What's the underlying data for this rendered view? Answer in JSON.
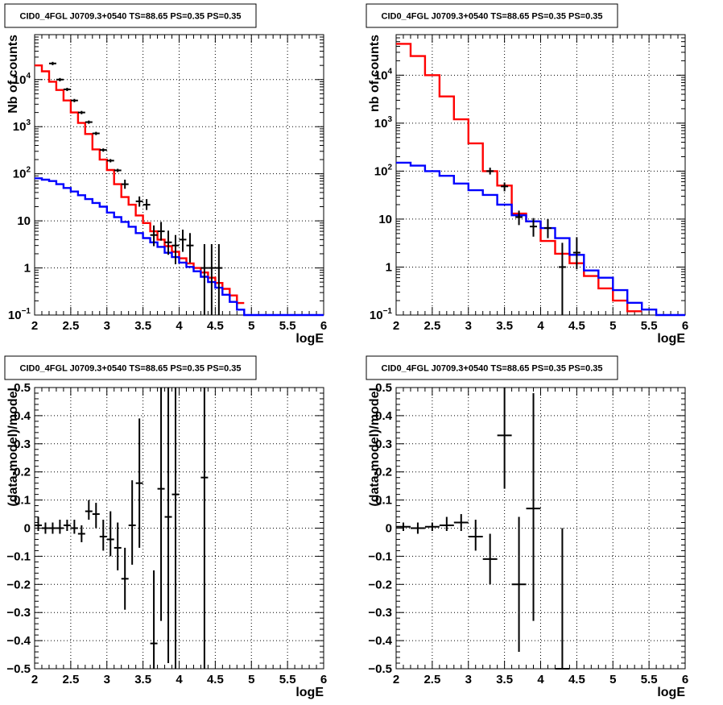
{
  "chart_data": [
    {
      "type": "line",
      "title": "CID0_4FGL J0709.3+0540 TS=88.65 PS=0.35 PS=0.35",
      "xlabel": "logE",
      "ylabel": "Nb of counts",
      "yscale": "log",
      "xlim": [
        2,
        6
      ],
      "ylim": [
        0.1,
        90000
      ],
      "grid": true,
      "x_ticks": [
        "2",
        "2.5",
        "3",
        "3.5",
        "4",
        "4.5",
        "5",
        "5.5",
        "6"
      ],
      "y_ticks": [
        {
          "value": 0.1,
          "base": "10",
          "exp": "−1"
        },
        {
          "value": 1,
          "label": "1"
        },
        {
          "value": 10,
          "label": "10"
        },
        {
          "value": 100,
          "base": "10",
          "exp": "2"
        },
        {
          "value": 1000,
          "base": "10",
          "exp": "3"
        },
        {
          "value": 10000,
          "base": "10",
          "exp": "4"
        }
      ],
      "bin_edges": [
        2.0,
        2.1,
        2.2,
        2.3,
        2.4,
        2.5,
        2.6,
        2.7,
        2.8,
        2.9,
        3.0,
        3.1,
        3.2,
        3.3,
        3.4,
        3.5,
        3.6,
        3.7,
        3.8,
        3.9,
        4.0,
        4.1,
        4.2,
        4.3,
        4.4,
        4.5,
        4.6,
        4.7,
        4.8,
        4.9,
        5.0,
        5.1,
        5.2,
        5.3,
        5.4,
        5.5,
        5.6,
        5.7,
        5.8,
        5.9,
        6.0
      ],
      "series": [
        {
          "color": "#ff0000",
          "kind": "step",
          "values": [
            20000,
            15000,
            9000,
            6000,
            3600,
            2000,
            1200,
            700,
            330,
            200,
            120,
            60,
            32,
            22,
            13,
            9,
            6,
            4,
            2.9,
            2.2,
            1.6,
            1.25,
            1.0,
            0.8,
            0.62,
            0.48,
            0.36,
            0.26,
            0.18
          ]
        },
        {
          "color": "#0000ff",
          "kind": "step",
          "values": [
            80,
            75,
            70,
            60,
            50,
            42,
            35,
            29,
            24,
            20,
            15,
            12,
            9.5,
            7.5,
            5.5,
            4.3,
            3.5,
            2.8,
            2.1,
            1.7,
            1.3,
            1.05,
            0.85,
            0.65,
            0.5,
            0.38,
            0.27,
            0.19,
            0.13,
            0.1,
            0.1,
            0.1,
            0.1,
            0.1,
            0.1,
            0.1,
            0.1,
            0.1,
            0.1,
            0.1
          ]
        }
      ],
      "data_points": [
        {
          "x": 2.25,
          "y": 22000
        },
        {
          "x": 2.35,
          "y": 10000
        },
        {
          "x": 2.45,
          "y": 6200
        },
        {
          "x": 2.55,
          "y": 3600
        },
        {
          "x": 2.65,
          "y": 2000
        },
        {
          "x": 2.75,
          "y": 1250
        },
        {
          "x": 2.85,
          "y": 720
        },
        {
          "x": 2.95,
          "y": 320
        },
        {
          "x": 3.05,
          "y": 190
        },
        {
          "x": 3.15,
          "y": 118
        },
        {
          "x": 3.25,
          "y": 60,
          "lo": 48,
          "hi": 75
        },
        {
          "x": 3.45,
          "y": 26,
          "lo": 20,
          "hi": 33
        },
        {
          "x": 3.55,
          "y": 22,
          "lo": 17,
          "hi": 29
        },
        {
          "x": 3.65,
          "y": 5,
          "lo": 2.9,
          "hi": 8
        },
        {
          "x": 3.75,
          "y": 6,
          "lo": 3.8,
          "hi": 9.5
        },
        {
          "x": 3.85,
          "y": 3.5,
          "lo": 1.9,
          "hi": 6.2
        },
        {
          "x": 3.95,
          "y": 3,
          "lo": 1.2,
          "hi": 5
        },
        {
          "x": 4.05,
          "y": 4,
          "lo": 2.2,
          "hi": 6.5
        },
        {
          "x": 4.15,
          "y": 3,
          "lo": 1.3,
          "hi": 5.5
        },
        {
          "x": 4.35,
          "y": 1,
          "lo": 0.1,
          "hi": 3.2
        },
        {
          "x": 4.45,
          "y": 1,
          "lo": 0.1,
          "hi": 3.2
        },
        {
          "x": 4.55,
          "y": 1,
          "lo": 0.1,
          "hi": 3.2
        }
      ]
    },
    {
      "type": "line",
      "title": "CID0_4FGL J0709.3+0540 TS=88.65 PS=0.35 PS=0.35",
      "xlabel": "logE",
      "ylabel": "nb of counts",
      "yscale": "log",
      "xlim": [
        2,
        6
      ],
      "ylim": [
        0.1,
        70000
      ],
      "grid": true,
      "x_ticks": [
        "2",
        "2.5",
        "3",
        "3.5",
        "4",
        "4.5",
        "5",
        "5.5",
        "6"
      ],
      "y_ticks": [
        {
          "value": 0.1,
          "base": "10",
          "exp": "−1"
        },
        {
          "value": 1,
          "label": "1"
        },
        {
          "value": 10,
          "label": "10"
        },
        {
          "value": 100,
          "base": "10",
          "exp": "2"
        },
        {
          "value": 1000,
          "base": "10",
          "exp": "3"
        },
        {
          "value": 10000,
          "base": "10",
          "exp": "4"
        }
      ],
      "bin_edges": [
        2.0,
        2.2,
        2.4,
        2.6,
        2.8,
        3.0,
        3.2,
        3.4,
        3.6,
        3.8,
        4.0,
        4.2,
        4.4,
        4.6,
        4.8,
        5.0,
        5.2,
        5.4,
        5.6,
        5.8,
        6.0
      ],
      "series": [
        {
          "color": "#ff0000",
          "kind": "step",
          "values": [
            45000,
            25000,
            10000,
            3600,
            1200,
            380,
            100,
            50,
            13,
            9,
            3.5,
            1.9,
            1.2,
            0.65,
            0.36,
            0.2,
            0.12
          ]
        },
        {
          "color": "#0000ff",
          "kind": "step",
          "values": [
            150,
            130,
            100,
            80,
            55,
            40,
            32,
            20,
            12,
            9,
            6.5,
            4,
            1.8,
            0.85,
            0.6,
            0.33,
            0.18,
            0.13,
            0.1,
            0.1
          ]
        }
      ],
      "data_points": [
        {
          "x": 3.3,
          "y": 100,
          "lo": 85,
          "hi": 118
        },
        {
          "x": 3.5,
          "y": 48,
          "lo": 38,
          "hi": 58
        },
        {
          "x": 3.7,
          "y": 11,
          "lo": 7.5,
          "hi": 15
        },
        {
          "x": 3.9,
          "y": 7,
          "lo": 4.3,
          "hi": 10.5
        },
        {
          "x": 4.1,
          "y": 6.5,
          "lo": 4,
          "hi": 10
        },
        {
          "x": 4.3,
          "y": 1,
          "lo": 0.1,
          "hi": 3.2
        },
        {
          "x": 4.5,
          "y": 2,
          "lo": 0.9,
          "hi": 4.2
        }
      ]
    },
    {
      "type": "scatter",
      "title": "CID0_4FGL J0709.3+0540 TS=88.65 PS=0.35 PS=0.35",
      "xlabel": "logE",
      "ylabel": "(data-model)/model",
      "xlim": [
        2,
        6
      ],
      "ylim": [
        -0.5,
        0.5
      ],
      "grid": true,
      "x_ticks": [
        "2",
        "2.5",
        "3",
        "3.5",
        "4",
        "4.5",
        "5",
        "5.5",
        "6"
      ],
      "y_ticks": [
        "−0.5",
        "−0.4",
        "−0.3",
        "−0.2",
        "−0.1",
        "0",
        "0.1",
        "0.2",
        "0.3",
        "0.4",
        "0.5"
      ],
      "bin_width": 0.1,
      "data_points": [
        {
          "x": 2.05,
          "y": 0.01,
          "lo": -0.01,
          "hi": 0.04
        },
        {
          "x": 2.15,
          "y": 0.0,
          "lo": -0.02,
          "hi": 0.02
        },
        {
          "x": 2.25,
          "y": 0.0,
          "lo": -0.02,
          "hi": 0.02
        },
        {
          "x": 2.35,
          "y": 0.0,
          "lo": -0.02,
          "hi": 0.03
        },
        {
          "x": 2.45,
          "y": 0.01,
          "lo": -0.01,
          "hi": 0.03
        },
        {
          "x": 2.55,
          "y": 0.0,
          "lo": -0.02,
          "hi": 0.03
        },
        {
          "x": 2.65,
          "y": -0.02,
          "lo": -0.05,
          "hi": 0.01
        },
        {
          "x": 2.75,
          "y": 0.06,
          "lo": 0.03,
          "hi": 0.1
        },
        {
          "x": 2.85,
          "y": 0.05,
          "lo": 0.0,
          "hi": 0.09
        },
        {
          "x": 2.95,
          "y": -0.03,
          "lo": -0.08,
          "hi": 0.03
        },
        {
          "x": 3.05,
          "y": -0.04,
          "lo": -0.1,
          "hi": 0.06
        },
        {
          "x": 3.15,
          "y": -0.07,
          "lo": -0.15,
          "hi": 0.02
        },
        {
          "x": 3.25,
          "y": -0.18,
          "lo": -0.29,
          "hi": -0.07
        },
        {
          "x": 3.35,
          "y": 0.01,
          "lo": -0.13,
          "hi": 0.17
        },
        {
          "x": 3.45,
          "y": 0.16,
          "lo": -0.07,
          "hi": 0.39
        },
        {
          "x": 3.65,
          "y": -0.41,
          "lo": -0.5,
          "hi": -0.15
        },
        {
          "x": 3.75,
          "y": 0.14,
          "lo": -0.33,
          "hi": 0.5
        },
        {
          "x": 3.85,
          "y": 0.04,
          "lo": -0.48,
          "hi": 0.5
        },
        {
          "x": 3.95,
          "y": 0.12,
          "lo": -0.5,
          "hi": 0.5
        },
        {
          "x": 4.35,
          "y": 0.18,
          "lo": -0.5,
          "hi": 0.5
        }
      ]
    },
    {
      "type": "scatter",
      "title": "CID0_4FGL J0709.3+0540 TS=88.65 PS=0.35 PS=0.35",
      "xlabel": "logE",
      "ylabel": "(data-model)/model",
      "xlim": [
        2,
        6
      ],
      "ylim": [
        -0.5,
        0.5
      ],
      "grid": true,
      "x_ticks": [
        "2",
        "2.5",
        "3",
        "3.5",
        "4",
        "4.5",
        "5",
        "5.5",
        "6"
      ],
      "y_ticks": [
        "−0.5",
        "−0.4",
        "−0.3",
        "−0.2",
        "−0.1",
        "0",
        "0.1",
        "0.2",
        "0.3",
        "0.4",
        "0.5"
      ],
      "bin_width": 0.2,
      "data_points": [
        {
          "x": 2.1,
          "y": 0.005,
          "lo": -0.01,
          "hi": 0.02
        },
        {
          "x": 2.3,
          "y": 0.0,
          "lo": -0.02,
          "hi": 0.02
        },
        {
          "x": 2.5,
          "y": 0.005,
          "lo": -0.01,
          "hi": 0.02
        },
        {
          "x": 2.7,
          "y": 0.01,
          "lo": -0.01,
          "hi": 0.04
        },
        {
          "x": 2.9,
          "y": 0.02,
          "lo": -0.01,
          "hi": 0.05
        },
        {
          "x": 3.1,
          "y": -0.03,
          "lo": -0.08,
          "hi": 0.03
        },
        {
          "x": 3.3,
          "y": -0.11,
          "lo": -0.2,
          "hi": -0.02
        },
        {
          "x": 3.5,
          "y": 0.33,
          "lo": 0.14,
          "hi": 0.5
        },
        {
          "x": 3.7,
          "y": -0.2,
          "lo": -0.44,
          "hi": 0.04
        },
        {
          "x": 3.9,
          "y": 0.07,
          "lo": -0.33,
          "hi": 0.48
        },
        {
          "x": 4.3,
          "y": -0.5,
          "lo": -0.5,
          "hi": 0.0
        }
      ]
    }
  ]
}
